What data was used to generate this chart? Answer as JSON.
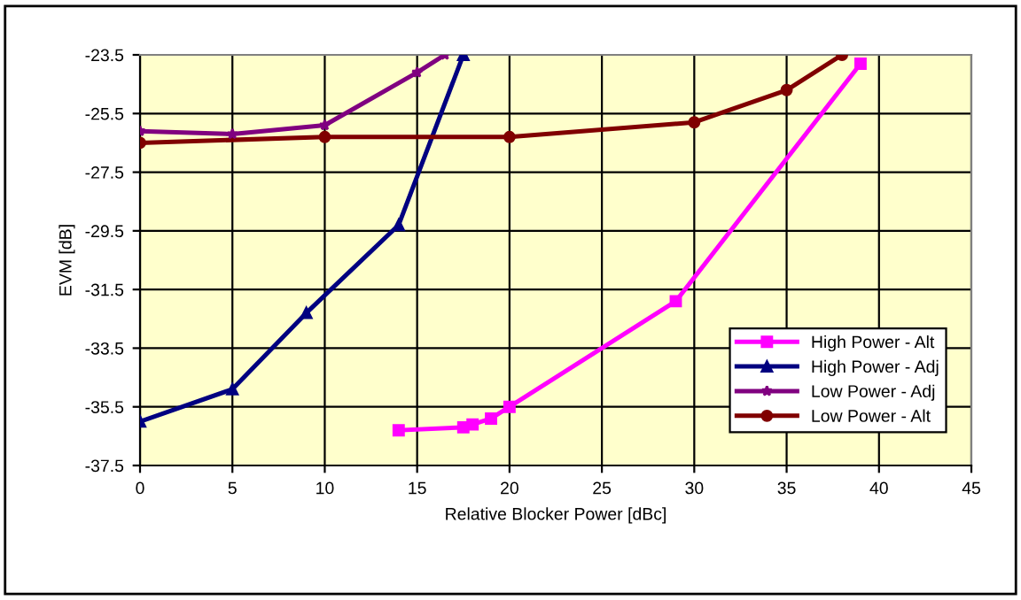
{
  "chart_data": {
    "type": "line",
    "xlabel": "Relative Blocker Power [dBc]",
    "ylabel": "EVM [dB]",
    "xlim": [
      0,
      45
    ],
    "xticks": [
      0,
      5,
      10,
      15,
      20,
      25,
      30,
      35,
      40,
      45
    ],
    "ylim": [
      -37.5,
      -23.5
    ],
    "yticks": [
      -37.5,
      -35.5,
      -33.5,
      -31.5,
      -29.5,
      -27.5,
      -25.5,
      -23.5
    ],
    "grid": true,
    "legend": "bottom right",
    "series": [
      {
        "name": "High Power - Alt",
        "color": "#ff00ff",
        "marker": "square",
        "x": [
          14,
          17.5,
          18,
          19,
          20,
          29,
          39
        ],
        "values": [
          -36.3,
          -36.2,
          -36.1,
          -35.9,
          -35.5,
          -31.9,
          -23.8
        ]
      },
      {
        "name": "High Power - Adj",
        "color": "#000080",
        "marker": "triangle",
        "x": [
          0,
          5,
          9,
          14,
          17.5
        ],
        "values": [
          -36.0,
          -34.9,
          -32.3,
          -29.3,
          -23.5
        ]
      },
      {
        "name": "Low Power - Adj",
        "color": "#800080",
        "marker": "star",
        "x": [
          0,
          5,
          10,
          15,
          16.5
        ],
        "values": [
          -26.1,
          -26.2,
          -25.9,
          -24.1,
          -23.5
        ]
      },
      {
        "name": "Low Power - Alt",
        "color": "#800000",
        "marker": "circle",
        "x": [
          0,
          10,
          20,
          30,
          35,
          38
        ],
        "values": [
          -26.5,
          -26.3,
          -26.3,
          -25.8,
          -24.7,
          -23.5
        ]
      }
    ]
  }
}
